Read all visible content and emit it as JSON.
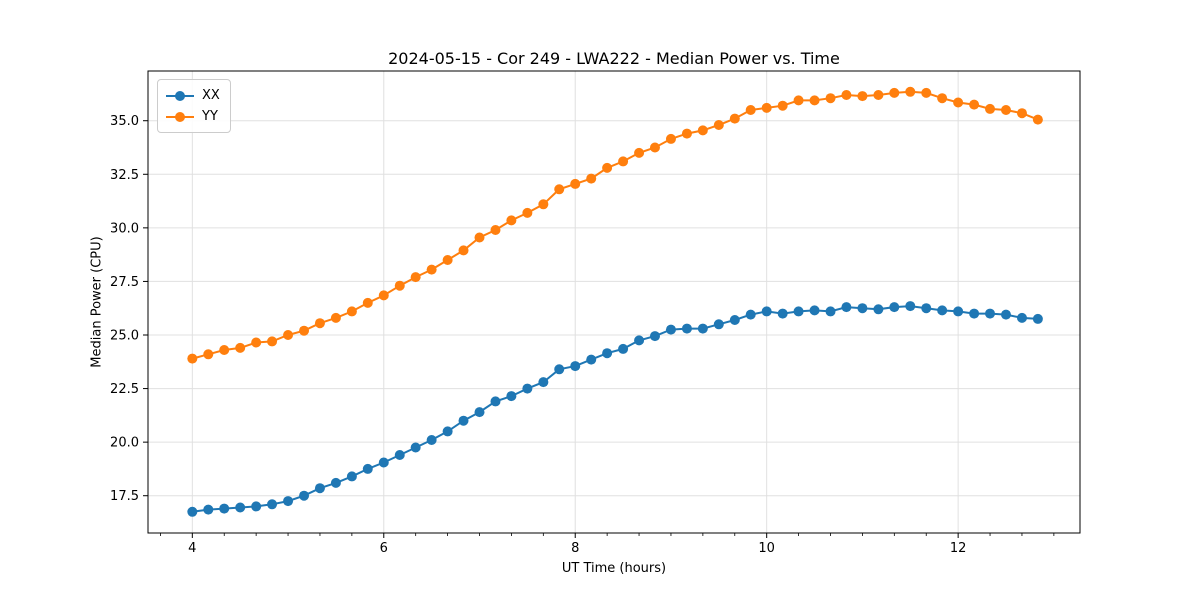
{
  "chart_data": {
    "type": "line",
    "title": "2024-05-15 - Cor 249 - LWA222 - Median Power vs. Time",
    "xlabel": "UT Time (hours)",
    "ylabel": "Median Power (CPU)",
    "grid": true,
    "legend_position": "upper left",
    "xlim": [
      3.537,
      13.273
    ],
    "ylim": [
      15.76,
      37.32
    ],
    "xticks": [
      4,
      6,
      8,
      10,
      12
    ],
    "x_minor_tick_step": 0.33333,
    "yticks": [
      17.5,
      20.0,
      22.5,
      25.0,
      27.5,
      30.0,
      32.5,
      35.0
    ],
    "x": [
      4.0,
      4.167,
      4.333,
      4.5,
      4.667,
      4.833,
      5.0,
      5.167,
      5.333,
      5.5,
      5.667,
      5.833,
      6.0,
      6.167,
      6.333,
      6.5,
      6.667,
      6.833,
      7.0,
      7.167,
      7.333,
      7.5,
      7.667,
      7.833,
      8.0,
      8.167,
      8.333,
      8.5,
      8.667,
      8.833,
      9.0,
      9.167,
      9.333,
      9.5,
      9.667,
      9.833,
      10.0,
      10.167,
      10.333,
      10.5,
      10.667,
      10.833,
      11.0,
      11.167,
      11.333,
      11.5,
      11.667,
      11.833,
      12.0,
      12.167,
      12.333,
      12.5,
      12.667,
      12.833
    ],
    "series": [
      {
        "name": "XX",
        "color": "#1f77b4",
        "values": [
          16.75,
          16.85,
          16.9,
          16.95,
          17.0,
          17.1,
          17.25,
          17.5,
          17.85,
          18.1,
          18.4,
          18.75,
          19.05,
          19.4,
          19.75,
          20.1,
          20.5,
          21.0,
          21.4,
          21.9,
          22.15,
          22.5,
          22.8,
          23.4,
          23.55,
          23.85,
          24.15,
          24.35,
          24.75,
          24.95,
          25.25,
          25.3,
          25.3,
          25.5,
          25.7,
          25.95,
          26.1,
          26.0,
          26.1,
          26.15,
          26.1,
          26.3,
          26.25,
          26.2,
          26.3,
          26.35,
          26.25,
          26.15,
          26.1,
          26.0,
          26.0,
          25.95,
          25.8,
          25.75
        ]
      },
      {
        "name": "YY",
        "color": "#ff7f0e",
        "values": [
          23.9,
          24.1,
          24.3,
          24.4,
          24.65,
          24.7,
          25.0,
          25.2,
          25.55,
          25.8,
          26.1,
          26.5,
          26.85,
          27.3,
          27.7,
          28.05,
          28.5,
          28.95,
          29.55,
          29.9,
          30.35,
          30.7,
          31.1,
          31.8,
          32.05,
          32.3,
          32.8,
          33.1,
          33.5,
          33.75,
          34.15,
          34.4,
          34.55,
          34.8,
          35.1,
          35.5,
          35.6,
          35.7,
          35.95,
          35.95,
          36.05,
          36.2,
          36.15,
          36.2,
          36.3,
          36.35,
          36.3,
          36.05,
          35.85,
          35.75,
          35.55,
          35.5,
          35.35,
          35.05
        ]
      }
    ],
    "style": {
      "grid_color": "#e0e0e0",
      "spine_color": "#000000",
      "tick_color": "#000000",
      "background": "#ffffff",
      "marker_radius": 5,
      "line_width": 2
    }
  }
}
